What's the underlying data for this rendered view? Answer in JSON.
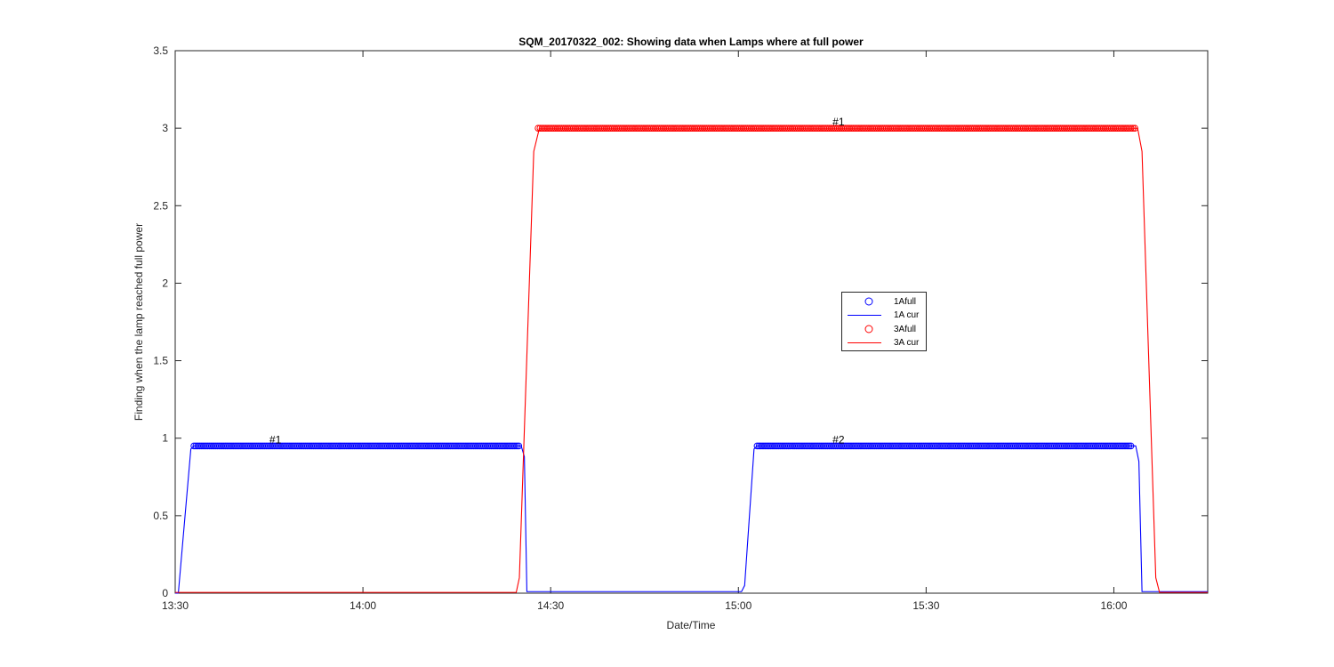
{
  "figure": {
    "title": "SQM_20170322_002: Showing data when Lamps where at full power",
    "xlabel": "Date/Time",
    "ylabel": "Finding when the lamp reached full power"
  },
  "legend": [
    {
      "label": "1Afull",
      "symbol": "circle",
      "color": "#0000ff"
    },
    {
      "label": "1A cur",
      "symbol": "line",
      "color": "#0000ff"
    },
    {
      "label": "3Afull",
      "symbol": "circle",
      "color": "#ff0000"
    },
    {
      "label": "3A cur",
      "symbol": "line",
      "color": "#ff0000"
    }
  ],
  "chart_data": {
    "type": "line",
    "title": "SQM_20170322_002: Showing data when Lamps where at full power",
    "xlabel": "Date/Time",
    "ylabel": "Finding when the lamp reached full power",
    "xlim": [
      "13:30",
      "16:15"
    ],
    "ylim": [
      0,
      3.5
    ],
    "x_ticks": [
      "13:30",
      "14:00",
      "14:30",
      "15:00",
      "15:30",
      "16:00"
    ],
    "y_ticks": [
      "0",
      "0.5",
      "1",
      "1.5",
      "2",
      "2.5",
      "3",
      "3.5"
    ],
    "grid": false,
    "legend_position": "center-right",
    "series": [
      {
        "name": "1A cur",
        "kind": "line",
        "color": "#0000ff",
        "points": [
          [
            "13:30",
            0.0
          ],
          [
            "13:30.5",
            0.0
          ],
          [
            "13:32.5",
            0.93
          ],
          [
            "13:33",
            0.95
          ],
          [
            "14:25.3",
            0.95
          ],
          [
            "14:25.8",
            0.88
          ],
          [
            "14:26.2",
            0.01
          ],
          [
            "15:00.5",
            0.01
          ],
          [
            "15:01",
            0.05
          ],
          [
            "15:02.5",
            0.93
          ],
          [
            "15:03",
            0.95
          ],
          [
            "16:03.5",
            0.95
          ],
          [
            "16:04",
            0.85
          ],
          [
            "16:04.5",
            0.01
          ],
          [
            "16:15",
            0.01
          ]
        ]
      },
      {
        "name": "1Afull",
        "kind": "markers",
        "marker": "circle",
        "color": "#0000ff",
        "segments": [
          {
            "x_start": "13:33",
            "x_end": "14:25",
            "y": 0.95,
            "label": "#1"
          },
          {
            "x_start": "15:03",
            "x_end": "16:03",
            "y": 0.95,
            "label": "#2"
          }
        ]
      },
      {
        "name": "3A cur",
        "kind": "line",
        "color": "#ff0000",
        "points": [
          [
            "13:30",
            0.005
          ],
          [
            "14:24.5",
            0.005
          ],
          [
            "14:25",
            0.1
          ],
          [
            "14:27.3",
            2.85
          ],
          [
            "14:28.2",
            3.0
          ],
          [
            "16:03.8",
            3.0
          ],
          [
            "16:04.5",
            2.85
          ],
          [
            "16:06.7",
            0.1
          ],
          [
            "16:07.3",
            0.005
          ],
          [
            "16:15",
            0.005
          ]
        ]
      },
      {
        "name": "3Afull",
        "kind": "markers",
        "marker": "circle",
        "color": "#ff0000",
        "segments": [
          {
            "x_start": "14:28",
            "x_end": "16:03.5",
            "y": 3.0,
            "label": "#1"
          }
        ]
      }
    ],
    "annotations": [
      {
        "text": "#1",
        "x": "13:46",
        "y": 0.95,
        "series": "1Afull"
      },
      {
        "text": "#2",
        "x": "15:16",
        "y": 0.95,
        "series": "1Afull"
      },
      {
        "text": "#1",
        "x": "15:16",
        "y": 3.0,
        "series": "3Afull"
      }
    ]
  }
}
